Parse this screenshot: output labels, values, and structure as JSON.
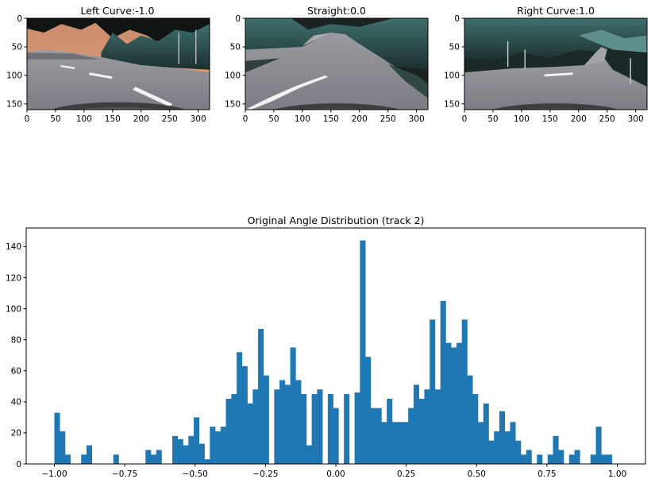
{
  "images": [
    {
      "title": "Left Curve:-1.0",
      "width": 320,
      "height": 160,
      "xticks": [
        0,
        50,
        100,
        150,
        200,
        250,
        300
      ],
      "yticks": [
        0,
        50,
        100,
        150
      ],
      "theme": "left"
    },
    {
      "title": "Straight:0.0",
      "width": 320,
      "height": 160,
      "xticks": [
        0,
        50,
        100,
        150,
        200,
        250,
        300
      ],
      "yticks": [
        0,
        50,
        100,
        150
      ],
      "theme": "straight"
    },
    {
      "title": "Right Curve:1.0",
      "width": 320,
      "height": 160,
      "xticks": [
        0,
        50,
        100,
        150,
        200,
        250,
        300
      ],
      "yticks": [
        0,
        50,
        100,
        150
      ],
      "theme": "right"
    }
  ],
  "chart_data": {
    "type": "bar",
    "title": "Original Angle Distribution (track 2)",
    "xlabel": "",
    "ylabel": "",
    "xlim": [
      -1.1,
      1.1
    ],
    "ylim": [
      0,
      152
    ],
    "xticks": [
      -1.0,
      -0.75,
      -0.5,
      -0.25,
      0.0,
      0.25,
      0.5,
      0.75,
      1.0
    ],
    "xtick_labels": [
      "−1.00",
      "−0.75",
      "−0.50",
      "−0.25",
      "0.00",
      "0.25",
      "0.50",
      "0.75",
      "1.00"
    ],
    "yticks": [
      0,
      20,
      40,
      60,
      80,
      100,
      120,
      140
    ],
    "bin_range": [
      -1.0,
      1.0
    ],
    "bar_color": "#1f77b4",
    "values": [
      33,
      21,
      6,
      0,
      0,
      6,
      12,
      0,
      0,
      0,
      0,
      6,
      0,
      0,
      0,
      0,
      0,
      9,
      6,
      9,
      0,
      0,
      18,
      16,
      12,
      18,
      30,
      13,
      3,
      24,
      21,
      24,
      42,
      45,
      72,
      63,
      39,
      48,
      87,
      57,
      0,
      48,
      54,
      51,
      75,
      54,
      45,
      12,
      45,
      48,
      0,
      45,
      36,
      0,
      45,
      0,
      46,
      144,
      69,
      36,
      36,
      27,
      42,
      27,
      27,
      27,
      36,
      51,
      42,
      48,
      93,
      48,
      105,
      78,
      75,
      78,
      93,
      57,
      45,
      27,
      39,
      15,
      21,
      34,
      21,
      27,
      15,
      6,
      9,
      0,
      6,
      0,
      6,
      18,
      9,
      0,
      6,
      9,
      0,
      0,
      6,
      24,
      6,
      6,
      0
    ]
  }
}
